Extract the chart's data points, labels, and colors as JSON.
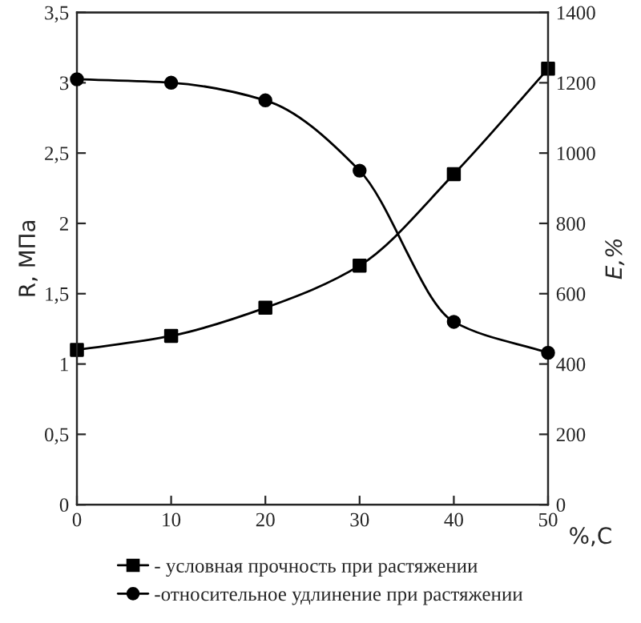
{
  "chart_data": {
    "type": "line",
    "xlabel": "%,C",
    "ylabel": "R, МПа",
    "y2label": "E,%",
    "x": [
      0,
      10,
      20,
      30,
      40,
      50
    ],
    "series": [
      {
        "name": "- условная прочность при растяжении",
        "color": "#000000",
        "marker": "square",
        "values": [
          1.1,
          1.2,
          1.4,
          1.7,
          2.35,
          3.1
        ]
      },
      {
        "name": "-относительное удлинение при растяжении",
        "color": "#000000",
        "marker": "circle",
        "axis": "y2",
        "values": [
          1210,
          1200,
          1150,
          950,
          520,
          432
        ]
      }
    ],
    "xlim": [
      0,
      50
    ],
    "xticks": [
      0,
      10,
      20,
      30,
      40,
      50
    ],
    "ylim": [
      0,
      3.5
    ],
    "yticks": [
      {
        "value": 0,
        "label": "0"
      },
      {
        "value": 0.5,
        "label": "0,5"
      },
      {
        "value": 1,
        "label": "1"
      },
      {
        "value": 1.5,
        "label": "1,5"
      },
      {
        "value": 2,
        "label": "2"
      },
      {
        "value": 2.5,
        "label": "2,5"
      },
      {
        "value": 3,
        "label": "3"
      },
      {
        "value": 3.5,
        "label": "3,5"
      }
    ],
    "y2lim": [
      0,
      1400
    ],
    "y2ticks": [
      0,
      200,
      400,
      600,
      800,
      1000,
      1200,
      1400
    ],
    "grid": false,
    "legend": "bottom"
  }
}
